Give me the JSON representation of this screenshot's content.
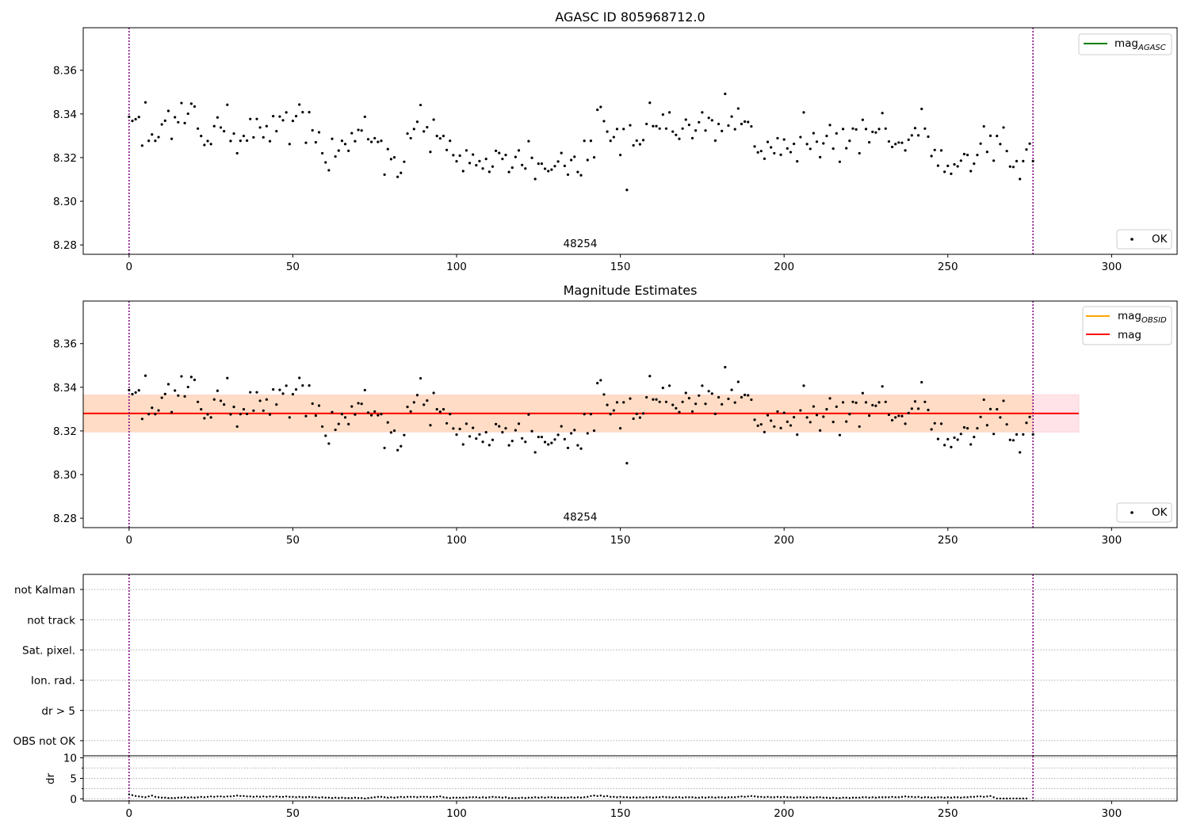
{
  "colors": {
    "points": "#000000",
    "mag_agasc": "#008000",
    "mag_obsid": "#ffa500",
    "mag": "#ff0000",
    "band_outer": "#ffc0cb",
    "band_inner": "#ffdab9",
    "vline": "#800080",
    "grid": "#b0b0b0"
  },
  "chart_data": [
    {
      "type": "scatter",
      "title": "AGASC ID 805968712.0",
      "annotation": "48254",
      "xlim": [
        -14,
        320
      ],
      "ylim": [
        8.2757,
        8.3795
      ],
      "xticks": [
        0,
        50,
        100,
        150,
        200,
        250,
        300
      ],
      "yticks": [
        8.28,
        8.3,
        8.32,
        8.34,
        8.36
      ],
      "ytick_labels": [
        "8.28",
        "8.30",
        "8.32",
        "8.34",
        "8.36"
      ],
      "vlines": [
        0,
        276
      ],
      "legend_lines": [
        {
          "name": "mag_AGASC",
          "base": "mag",
          "sub": "AGASC",
          "color": "#008000"
        }
      ],
      "legend_lines_position": "upper right",
      "legend_points": [
        {
          "name": "OK"
        }
      ],
      "legend_points_position": "lower right",
      "series": [
        {
          "name": "OK",
          "source": "shared.mag_series"
        }
      ]
    },
    {
      "type": "scatter",
      "title": "Magnitude Estimates",
      "annotation": "48254",
      "xlim": [
        -14,
        320
      ],
      "ylim": [
        8.2757,
        8.3795
      ],
      "xticks": [
        0,
        50,
        100,
        150,
        200,
        250,
        300
      ],
      "yticks": [
        8.28,
        8.3,
        8.32,
        8.34,
        8.36
      ],
      "ytick_labels": [
        "8.28",
        "8.30",
        "8.32",
        "8.34",
        "8.36"
      ],
      "vlines": [
        0,
        276
      ],
      "hline": {
        "name": "mag",
        "value": 8.328
      },
      "bands": [
        {
          "name": "mag range",
          "x": [
            -14,
            290
          ],
          "y": [
            8.3195,
            8.3365
          ]
        },
        {
          "name": "mag_OBSID range",
          "x": [
            -14,
            276
          ],
          "y": [
            8.3195,
            8.3365
          ]
        }
      ],
      "legend_lines": [
        {
          "name": "mag_OBSID",
          "base": "mag",
          "sub": "OBSID",
          "color": "#ffa500"
        },
        {
          "name": "mag",
          "base": "mag",
          "sub": "",
          "color": "#ff0000"
        }
      ],
      "legend_lines_position": "upper right",
      "legend_points": [
        {
          "name": "OK"
        }
      ],
      "legend_points_position": "lower right",
      "series": [
        {
          "name": "OK",
          "source": "shared.mag_series"
        }
      ]
    },
    {
      "type": "scatter",
      "title": "",
      "xlim": [
        -14,
        320
      ],
      "ylim": [
        -0.5,
        5.5
      ],
      "flag_labels": [
        "OBS not OK",
        "dr > 5",
        "Ion. rad.",
        "Sat. pixel.",
        "not track",
        "not Kalman"
      ],
      "vlines": [
        0,
        276
      ],
      "grid": true
    },
    {
      "type": "scatter",
      "title": "",
      "ylabel": "dr",
      "xlim": [
        -14,
        320
      ],
      "ylim": [
        -0.5,
        10.5
      ],
      "xticks": [
        0,
        50,
        100,
        150,
        200,
        250,
        300
      ],
      "yticks": [
        0,
        5,
        10
      ],
      "ytick_labels": [
        "0",
        "5",
        "10"
      ],
      "vlines": [
        0,
        276
      ],
      "grid": true,
      "series": [
        {
          "name": "dr",
          "x_start": 0,
          "x_step": 1,
          "values": [
            1.1,
            0.9,
            0.7,
            0.6,
            0.5,
            0.4,
            0.6,
            0.8,
            0.5,
            0.4,
            0.3,
            0.3,
            0.2,
            0.2,
            0.2,
            0.3,
            0.3,
            0.4,
            0.3,
            0.4,
            0.3,
            0.4,
            0.5,
            0.4,
            0.5,
            0.6,
            0.5,
            0.6,
            0.6,
            0.5,
            0.6,
            0.6,
            0.7,
            0.8,
            0.7,
            0.7,
            0.6,
            0.6,
            0.5,
            0.6,
            0.5,
            0.6,
            0.5,
            0.6,
            0.5,
            0.6,
            0.5,
            0.5,
            0.6,
            0.5,
            0.5,
            0.4,
            0.5,
            0.4,
            0.4,
            0.5,
            0.4,
            0.4,
            0.3,
            0.4,
            0.3,
            0.3,
            0.2,
            0.3,
            0.2,
            0.3,
            0.2,
            0.2,
            0.2,
            0.3,
            0.2,
            0.2,
            0.1,
            0.2,
            0.3,
            0.4,
            0.5,
            0.5,
            0.4,
            0.3,
            0.4,
            0.3,
            0.4,
            0.5,
            0.4,
            0.5,
            0.5,
            0.5,
            0.4,
            0.5,
            0.5,
            0.5,
            0.4,
            0.5,
            0.5,
            0.6,
            0.4,
            0.3,
            0.2,
            0.3,
            0.3,
            0.3,
            0.3,
            0.3,
            0.4,
            0.4,
            0.4,
            0.3,
            0.4,
            0.3,
            0.4,
            0.5,
            0.4,
            0.4,
            0.3,
            0.4,
            0.2,
            0.2,
            0.2,
            0.2,
            0.3,
            0.2,
            0.3,
            0.3,
            0.4,
            0.3,
            0.4,
            0.3,
            0.4,
            0.4,
            0.3,
            0.3,
            0.3,
            0.3,
            0.3,
            0.4,
            0.3,
            0.4,
            0.3,
            0.4,
            0.5,
            0.7,
            0.8,
            0.7,
            0.8,
            0.6,
            0.7,
            0.5,
            0.5,
            0.4,
            0.5,
            0.4,
            0.4,
            0.3,
            0.4,
            0.3,
            0.4,
            0.3,
            0.4,
            0.4,
            0.3,
            0.4,
            0.4,
            0.5,
            0.4,
            0.4,
            0.3,
            0.4,
            0.4,
            0.3,
            0.4,
            0.4,
            0.4,
            0.3,
            0.3,
            0.4,
            0.3,
            0.4,
            0.4,
            0.3,
            0.4,
            0.4,
            0.3,
            0.4,
            0.4,
            0.4,
            0.5,
            0.6,
            0.5,
            0.6,
            0.7,
            0.6,
            0.5,
            0.5,
            0.4,
            0.5,
            0.4,
            0.4,
            0.5,
            0.4,
            0.5,
            0.4,
            0.4,
            0.3,
            0.4,
            0.4,
            0.4,
            0.3,
            0.4,
            0.3,
            0.4,
            0.4,
            0.3,
            0.3,
            0.2,
            0.3,
            0.2,
            0.2,
            0.3,
            0.3,
            0.2,
            0.3,
            0.3,
            0.3,
            0.4,
            0.4,
            0.3,
            0.4,
            0.3,
            0.4,
            0.4,
            0.4,
            0.4,
            0.5,
            0.4,
            0.4,
            0.5,
            0.6,
            0.5,
            0.5,
            0.4,
            0.5,
            0.3,
            0.4,
            0.4,
            0.3,
            0.3,
            0.4,
            0.4,
            0.3,
            0.4,
            0.3,
            0.4,
            0.4,
            0.3,
            0.4,
            0.4,
            0.5,
            0.5,
            0.6,
            0.6,
            0.5,
            0.6,
            0.7,
            0.4,
            0.1,
            0.1,
            0.1,
            0.1,
            0.1,
            0.1,
            0.1,
            0.1,
            0.1,
            0.1
          ]
        }
      ]
    }
  ],
  "shared": {
    "mag_series": {
      "x_start": 0,
      "x_step": 1,
      "values": [
        8.3387,
        8.3368,
        8.3376,
        8.3386,
        8.3255,
        8.3453,
        8.3277,
        8.3306,
        8.3277,
        8.3294,
        8.3352,
        8.3369,
        8.3414,
        8.3286,
        8.3385,
        8.3362,
        8.345,
        8.3358,
        8.3401,
        8.3447,
        8.3434,
        8.3333,
        8.3299,
        8.3258,
        8.3276,
        8.3262,
        8.3344,
        8.3384,
        8.3338,
        8.3321,
        8.3442,
        8.3276,
        8.331,
        8.322,
        8.3277,
        8.3299,
        8.3278,
        8.3377,
        8.3293,
        8.3377,
        8.3338,
        8.3293,
        8.3344,
        8.3275,
        8.339,
        8.3321,
        8.3388,
        8.3371,
        8.3407,
        8.3262,
        8.3368,
        8.339,
        8.3443,
        8.3408,
        8.3268,
        8.3408,
        8.3325,
        8.327,
        8.3316,
        8.322,
        8.3178,
        8.3142,
        8.3286,
        8.3205,
        8.3232,
        8.3277,
        8.3262,
        8.3231,
        8.3312,
        8.3275,
        8.3327,
        8.3324,
        8.3387,
        8.3284,
        8.3272,
        8.3289,
        8.3272,
        8.3277,
        8.3122,
        8.3239,
        8.3193,
        8.3201,
        8.3112,
        8.313,
        8.3181,
        8.331,
        8.3289,
        8.3331,
        8.3364,
        8.3441,
        8.332,
        8.3339,
        8.3226,
        8.3374,
        8.3299,
        8.3288,
        8.3299,
        8.3235,
        8.3277,
        8.3211,
        8.3183,
        8.3209,
        8.3138,
        8.3233,
        8.3175,
        8.3214,
        8.3165,
        8.3184,
        8.315,
        8.3194,
        8.3135,
        8.3159,
        8.3231,
        8.3221,
        8.3194,
        8.3212,
        8.3134,
        8.3154,
        8.3203,
        8.3233,
        8.3166,
        8.315,
        8.3275,
        8.3199,
        8.3102,
        8.3172,
        8.3172,
        8.3149,
        8.3138,
        8.3145,
        8.3161,
        8.3182,
        8.3221,
        8.3162,
        8.3122,
        8.3189,
        8.3204,
        8.3134,
        8.3119,
        8.3277,
        8.3189,
        8.3277,
        8.3201,
        8.3419,
        8.3432,
        8.3367,
        8.3319,
        8.3277,
        8.3294,
        8.3331,
        8.3212,
        8.3331,
        8.3052,
        8.3348,
        8.3256,
        8.3278,
        8.3261,
        8.328,
        8.3354,
        8.3451,
        8.3344,
        8.3344,
        8.3333,
        8.3397,
        8.3333,
        8.3407,
        8.3319,
        8.3304,
        8.3286,
        8.3333,
        8.3374,
        8.335,
        8.3289,
        8.3324,
        8.3362,
        8.3407,
        8.3324,
        8.3382,
        8.3371,
        8.3278,
        8.3354,
        8.3322,
        8.3492,
        8.3347,
        8.3388,
        8.333,
        8.3425,
        8.3354,
        8.3365,
        8.3363,
        8.3343,
        8.3251,
        8.3224,
        8.323,
        8.3195,
        8.3272,
        8.3247,
        8.322,
        8.3289,
        8.3213,
        8.3283,
        8.3242,
        8.3225,
        8.3263,
        8.3183,
        8.3294,
        8.3407,
        8.3262,
        8.324,
        8.3312,
        8.3273,
        8.3202,
        8.3265,
        8.3299,
        8.3349,
        8.3241,
        8.3311,
        8.3181,
        8.3331,
        8.3243,
        8.3277,
        8.3333,
        8.3329,
        8.322,
        8.3373,
        8.3331,
        8.327,
        8.3318,
        8.3315,
        8.3331,
        8.3404,
        8.3333,
        8.3274,
        8.3249,
        8.3262,
        8.3269,
        8.3268,
        8.3233,
        8.3282,
        8.3302,
        8.3335,
        8.3302,
        8.3423,
        8.3333,
        8.3296,
        8.3207,
        8.3235,
        8.3163,
        8.3233,
        8.3135,
        8.3162,
        8.3126,
        8.3169,
        8.316,
        8.3186,
        8.3216,
        8.3212,
        8.3138,
        8.3172,
        8.3212,
        8.3264,
        8.3343,
        8.3226,
        8.33,
        8.3186,
        8.3299,
        8.3262,
        8.3338,
        8.323,
        8.3159,
        8.3157,
        8.3184,
        8.3102,
        8.3184,
        8.3237,
        8.3264,
        8.3184
      ]
    }
  }
}
